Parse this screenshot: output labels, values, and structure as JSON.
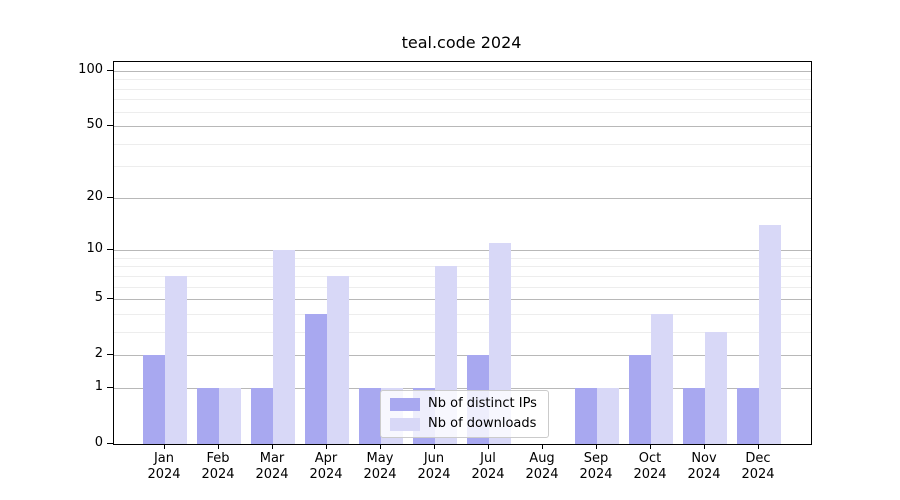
{
  "title": "teal.code 2024",
  "chart_data": {
    "type": "bar",
    "title": "teal.code 2024",
    "x_months": [
      "Jan",
      "Feb",
      "Mar",
      "Apr",
      "May",
      "Jun",
      "Jul",
      "Aug",
      "Sep",
      "Oct",
      "Nov",
      "Dec"
    ],
    "x_year": "2024",
    "series": [
      {
        "name": "Nb of distinct IPs",
        "color": "#a8a8f0",
        "values": [
          2,
          1,
          1,
          4,
          1,
          1,
          2,
          0,
          1,
          2,
          1,
          1
        ]
      },
      {
        "name": "Nb of downloads",
        "color": "#d8d8f7",
        "values": [
          7,
          1,
          10,
          7,
          1,
          8,
          11,
          0,
          1,
          4,
          3,
          14
        ]
      }
    ],
    "yscale": "log10(1+y)",
    "ylim": [
      0,
      100
    ],
    "yticks": [
      {
        "value": 0,
        "label": "0"
      },
      {
        "value": 1,
        "label": "1"
      },
      {
        "value": 2,
        "label": "2"
      },
      {
        "value": 5,
        "label": "5"
      },
      {
        "value": 10,
        "label": "10"
      },
      {
        "value": 20,
        "label": "20"
      },
      {
        "value": 50,
        "label": "50"
      },
      {
        "value": 100,
        "label": "100"
      }
    ],
    "yticks_minor": [
      3,
      4,
      6,
      7,
      8,
      9,
      30,
      40,
      60,
      70,
      80,
      90
    ],
    "grid": "horizontal",
    "legend_position": "lower center",
    "colors": {
      "major_grid": "rgba(0,0,0,0.28)",
      "minor_grid": "rgba(0,0,0,0.07)",
      "spine": "#000000",
      "background": "#ffffff"
    }
  }
}
